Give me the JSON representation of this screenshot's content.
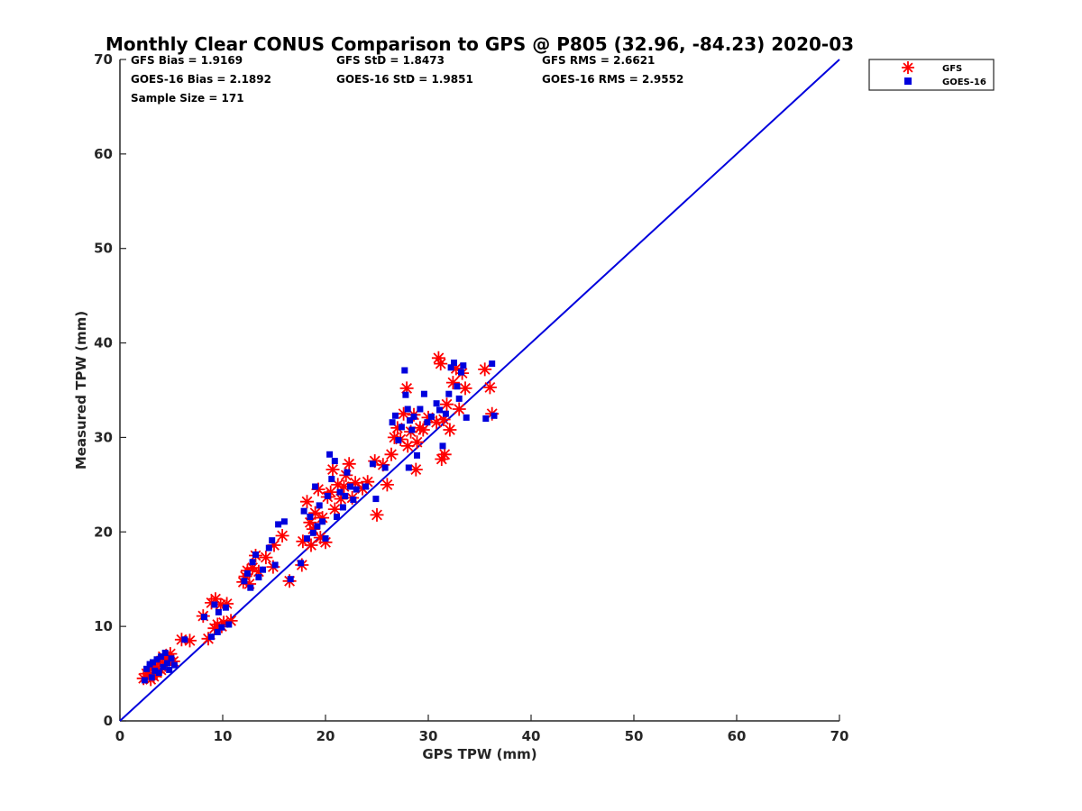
{
  "chart_data": {
    "type": "scatter",
    "title": "Monthly Clear CONUS Comparison to GPS @ P805 (32.96, -84.23) 2020-03",
    "xlabel": "GPS TPW (mm)",
    "ylabel": "Measured TPW (mm)",
    "xlim": [
      0,
      70
    ],
    "ylim": [
      0,
      70
    ],
    "x_ticks": [
      "0",
      "10",
      "20",
      "30",
      "40",
      "50",
      "60",
      "70"
    ],
    "y_ticks": [
      "0",
      "10",
      "20",
      "30",
      "40",
      "50",
      "60",
      "70"
    ],
    "grid": false,
    "legend_position": "top-right outside",
    "stats": {
      "gfs_bias": "GFS Bias = 1.9169",
      "gfs_std": "GFS StD = 1.8473",
      "gfs_rms": "GFS RMS = 2.6621",
      "goes_bias": "GOES-16 Bias = 2.1892",
      "goes_std": "GOES-16 StD = 1.9851",
      "goes_rms": "GOES-16 RMS = 2.9552",
      "sample_size": "Sample Size = 171"
    },
    "reference_line": {
      "x": [
        0,
        70
      ],
      "y": [
        0,
        70
      ],
      "color": "#0000dd"
    },
    "series": [
      {
        "name": "GFS",
        "marker": "asterisk",
        "color": "#ff0000",
        "points": [
          [
            2.3,
            4.5
          ],
          [
            2.6,
            5.0
          ],
          [
            2.9,
            4.8
          ],
          [
            3.1,
            5.5
          ],
          [
            3.3,
            4.7
          ],
          [
            3.5,
            5.8
          ],
          [
            3.8,
            6.2
          ],
          [
            4.0,
            5.4
          ],
          [
            4.2,
            6.8
          ],
          [
            4.4,
            5.9
          ],
          [
            4.6,
            6.5
          ],
          [
            4.9,
            7.1
          ],
          [
            5.2,
            6.3
          ],
          [
            3.0,
            4.4
          ],
          [
            3.6,
            5.1
          ],
          [
            6.0,
            8.6
          ],
          [
            6.8,
            8.5
          ],
          [
            8.1,
            11.1
          ],
          [
            8.6,
            8.7
          ],
          [
            8.9,
            12.5
          ],
          [
            9.2,
            9.8
          ],
          [
            9.5,
            10.2
          ],
          [
            9.8,
            12.3
          ],
          [
            10.1,
            10.4
          ],
          [
            10.4,
            12.4
          ],
          [
            10.8,
            10.6
          ],
          [
            9.3,
            12.9
          ],
          [
            9.9,
            10.0
          ],
          [
            12.0,
            14.7
          ],
          [
            12.2,
            15.3
          ],
          [
            12.4,
            15.9
          ],
          [
            12.6,
            14.5
          ],
          [
            12.9,
            16.2
          ],
          [
            13.2,
            17.5
          ],
          [
            13.5,
            15.8
          ],
          [
            14.2,
            17.3
          ],
          [
            14.9,
            16.3
          ],
          [
            15.0,
            18.6
          ],
          [
            15.8,
            19.6
          ],
          [
            16.5,
            14.8
          ],
          [
            17.7,
            16.5
          ],
          [
            17.8,
            19.0
          ],
          [
            18.2,
            23.2
          ],
          [
            18.5,
            21.0
          ],
          [
            18.6,
            18.6
          ],
          [
            18.8,
            20.3
          ],
          [
            19.0,
            22.0
          ],
          [
            19.3,
            24.5
          ],
          [
            19.5,
            19.4
          ],
          [
            19.7,
            21.5
          ],
          [
            20.0,
            18.9
          ],
          [
            20.2,
            23.7
          ],
          [
            20.5,
            24.2
          ],
          [
            20.7,
            26.6
          ],
          [
            20.9,
            22.4
          ],
          [
            21.2,
            25.0
          ],
          [
            21.5,
            23.5
          ],
          [
            21.8,
            24.8
          ],
          [
            22.0,
            26.0
          ],
          [
            22.3,
            27.2
          ],
          [
            22.6,
            23.6
          ],
          [
            22.9,
            25.2
          ],
          [
            23.6,
            24.6
          ],
          [
            24.1,
            25.3
          ],
          [
            24.8,
            27.5
          ],
          [
            25.0,
            21.8
          ],
          [
            25.6,
            27.1
          ],
          [
            26.0,
            25.0
          ],
          [
            26.4,
            28.2
          ],
          [
            26.7,
            30.0
          ],
          [
            27.0,
            31.0
          ],
          [
            27.3,
            29.8
          ],
          [
            27.6,
            32.5
          ],
          [
            27.9,
            35.2
          ],
          [
            28.0,
            29.1
          ],
          [
            28.3,
            30.6
          ],
          [
            28.6,
            32.4
          ],
          [
            28.9,
            29.5
          ],
          [
            29.2,
            31.0
          ],
          [
            28.8,
            26.6
          ],
          [
            29.5,
            30.8
          ],
          [
            30.0,
            32.1
          ],
          [
            30.8,
            31.6
          ],
          [
            31.0,
            38.4
          ],
          [
            31.3,
            27.7
          ],
          [
            31.5,
            31.9
          ],
          [
            31.8,
            33.5
          ],
          [
            32.1,
            30.8
          ],
          [
            32.4,
            35.8
          ],
          [
            32.7,
            37.3
          ],
          [
            33.0,
            33.0
          ],
          [
            33.3,
            36.8
          ],
          [
            33.6,
            35.2
          ],
          [
            35.5,
            37.2
          ],
          [
            36.0,
            35.3
          ],
          [
            36.2,
            32.5
          ],
          [
            31.2,
            37.8
          ],
          [
            31.6,
            28.2
          ]
        ]
      },
      {
        "name": "GOES-16",
        "marker": "square",
        "color": "#0000dd",
        "points": [
          [
            2.4,
            4.3
          ],
          [
            2.6,
            5.5
          ],
          [
            2.9,
            6.0
          ],
          [
            3.1,
            4.6
          ],
          [
            3.4,
            5.3
          ],
          [
            3.6,
            6.5
          ],
          [
            3.8,
            5.1
          ],
          [
            4.0,
            6.8
          ],
          [
            4.2,
            5.7
          ],
          [
            4.4,
            7.2
          ],
          [
            4.6,
            6.1
          ],
          [
            4.8,
            5.4
          ],
          [
            5.0,
            6.6
          ],
          [
            5.3,
            5.9
          ],
          [
            3.2,
            6.2
          ],
          [
            6.3,
            8.6
          ],
          [
            8.2,
            11.0
          ],
          [
            8.9,
            8.9
          ],
          [
            9.2,
            12.3
          ],
          [
            9.5,
            9.4
          ],
          [
            9.9,
            9.9
          ],
          [
            10.3,
            12.0
          ],
          [
            10.6,
            10.2
          ],
          [
            9.6,
            11.5
          ],
          [
            12.1,
            14.8
          ],
          [
            12.4,
            15.6
          ],
          [
            12.7,
            14.1
          ],
          [
            12.9,
            16.8
          ],
          [
            13.2,
            17.6
          ],
          [
            13.5,
            15.2
          ],
          [
            13.9,
            16.0
          ],
          [
            14.5,
            18.3
          ],
          [
            14.8,
            19.1
          ],
          [
            15.1,
            16.5
          ],
          [
            15.4,
            20.8
          ],
          [
            16.0,
            21.1
          ],
          [
            16.6,
            15.0
          ],
          [
            17.6,
            16.7
          ],
          [
            17.9,
            22.2
          ],
          [
            18.2,
            19.3
          ],
          [
            18.5,
            21.6
          ],
          [
            18.8,
            19.9
          ],
          [
            19.0,
            24.8
          ],
          [
            19.2,
            20.6
          ],
          [
            19.4,
            22.8
          ],
          [
            19.7,
            21.1
          ],
          [
            20.0,
            19.3
          ],
          [
            20.2,
            23.8
          ],
          [
            20.4,
            28.2
          ],
          [
            20.6,
            25.6
          ],
          [
            20.9,
            27.5
          ],
          [
            21.1,
            21.6
          ],
          [
            21.4,
            24.2
          ],
          [
            21.7,
            22.6
          ],
          [
            21.9,
            23.8
          ],
          [
            22.1,
            26.3
          ],
          [
            22.4,
            24.8
          ],
          [
            22.7,
            23.4
          ],
          [
            23.0,
            24.5
          ],
          [
            23.9,
            24.8
          ],
          [
            24.6,
            27.2
          ],
          [
            24.9,
            23.5
          ],
          [
            25.8,
            26.8
          ],
          [
            26.5,
            31.6
          ],
          [
            26.8,
            32.3
          ],
          [
            27.1,
            29.7
          ],
          [
            27.4,
            31.1
          ],
          [
            27.7,
            37.1
          ],
          [
            27.8,
            34.5
          ],
          [
            28.0,
            33.0
          ],
          [
            28.2,
            31.8
          ],
          [
            28.4,
            30.8
          ],
          [
            28.6,
            32.2
          ],
          [
            28.9,
            28.1
          ],
          [
            29.2,
            33.0
          ],
          [
            29.6,
            34.6
          ],
          [
            29.9,
            31.6
          ],
          [
            30.3,
            32.2
          ],
          [
            30.8,
            33.6
          ],
          [
            31.1,
            32.9
          ],
          [
            31.4,
            29.1
          ],
          [
            31.7,
            32.5
          ],
          [
            32.0,
            34.6
          ],
          [
            32.2,
            37.4
          ],
          [
            32.5,
            37.9
          ],
          [
            32.8,
            35.4
          ],
          [
            33.0,
            34.1
          ],
          [
            33.2,
            36.9
          ],
          [
            33.4,
            37.6
          ],
          [
            33.7,
            32.1
          ],
          [
            35.6,
            32.0
          ],
          [
            36.2,
            37.8
          ],
          [
            36.4,
            32.3
          ],
          [
            28.1,
            26.8
          ]
        ]
      }
    ]
  }
}
